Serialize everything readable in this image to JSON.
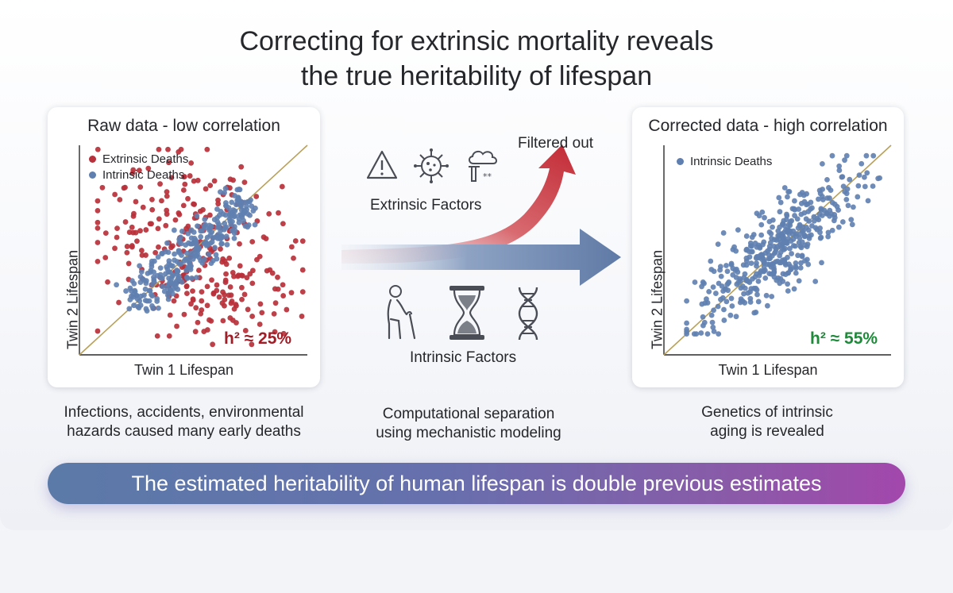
{
  "title": {
    "line1": "Correcting for extrinsic mortality reveals",
    "line2": "the true heritability of lifespan"
  },
  "left_panel": {
    "title": "Raw data - low correlation",
    "legend": [
      {
        "label": "Extrinsic Deaths",
        "color": "#b8303a"
      },
      {
        "label": "Intrinsic Deaths",
        "color": "#5f7fb0"
      }
    ],
    "h2": "h² ≈ 25%",
    "h2_color": "#a01e28",
    "xlabel": "Twin 1 Lifespan",
    "ylabel": "Twin 2 Lifespan",
    "caption_line1": "Infections, accidents, environmental",
    "caption_line2": "hazards caused many early deaths"
  },
  "middle": {
    "filtered_label": "Filtered out",
    "extrinsic_label": "Extrinsic Factors",
    "intrinsic_label": "Intrinsic Factors",
    "extrinsic_icons": [
      "warning-icon",
      "virus-icon",
      "factory-pollution-icon"
    ],
    "intrinsic_icons": [
      "elderly-person-icon",
      "hourglass-icon",
      "dna-icon"
    ],
    "caption_line1": "Computational separation",
    "caption_line2": "using mechanistic modeling",
    "red_arrow_color": "#c9323c",
    "blue_arrow_color": "#5f7aa6"
  },
  "right_panel": {
    "title": "Corrected data - high correlation",
    "legend": [
      {
        "label": "Intrinsic Deaths",
        "color": "#5f7fb0"
      }
    ],
    "h2": "h² ≈ 55%",
    "h2_color": "#1e8a3a",
    "xlabel": "Twin 1 Lifespan",
    "ylabel": "Twin 2 Lifespan",
    "caption_line1": "Genetics of intrinsic",
    "caption_line2": "aging is revealed"
  },
  "banner": {
    "text": "The estimated heritability of human lifespan is double previous estimates"
  },
  "chart_data": [
    {
      "type": "scatter",
      "title": "Raw data - low correlation",
      "xlabel": "Twin 1 Lifespan",
      "ylabel": "Twin 2 Lifespan",
      "series": [
        {
          "name": "Extrinsic Deaths",
          "color": "#b8303a",
          "pattern": "widely scattered away from the diagonal",
          "count": 300
        },
        {
          "name": "Intrinsic Deaths",
          "color": "#5f7fb0",
          "pattern": "tight band along the diagonal",
          "count": 300
        }
      ],
      "reference_line": "y = x",
      "annotation": "h² ≈ 25%"
    },
    {
      "type": "scatter",
      "title": "Corrected data - high correlation",
      "xlabel": "Twin 1 Lifespan",
      "ylabel": "Twin 2 Lifespan",
      "series": [
        {
          "name": "Intrinsic Deaths",
          "color": "#5f7fb0",
          "pattern": "elongated cloud along the diagonal",
          "count": 420
        }
      ],
      "reference_line": "y = x",
      "annotation": "h² ≈ 55%"
    }
  ]
}
